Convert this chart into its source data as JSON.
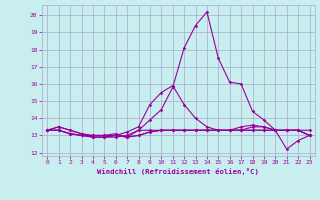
{
  "background_color": "#c8eef0",
  "grid_color": "#aaaacc",
  "line_color": "#990099",
  "xlabel": "Windchill (Refroidissement éolien,°C)",
  "xlabel_color": "#990099",
  "tick_color": "#990099",
  "xlim": [
    -0.5,
    23.5
  ],
  "ylim": [
    11.8,
    20.6
  ],
  "yticks": [
    12,
    13,
    14,
    15,
    16,
    17,
    18,
    19,
    20
  ],
  "xticks": [
    0,
    1,
    2,
    3,
    4,
    5,
    6,
    7,
    8,
    9,
    10,
    11,
    12,
    13,
    14,
    15,
    16,
    17,
    18,
    19,
    20,
    21,
    22,
    23
  ],
  "series": [
    [
      13.3,
      13.5,
      13.3,
      13.1,
      12.9,
      12.9,
      12.9,
      13.0,
      13.3,
      13.9,
      14.5,
      15.8,
      18.1,
      19.4,
      20.2,
      17.5,
      16.1,
      16.0,
      14.4,
      13.9,
      13.3,
      12.2,
      12.7,
      13.0
    ],
    [
      13.3,
      13.5,
      13.3,
      13.1,
      13.0,
      13.0,
      13.0,
      13.2,
      13.5,
      14.8,
      15.5,
      15.9,
      14.8,
      14.0,
      13.5,
      13.3,
      13.3,
      13.5,
      13.6,
      13.5,
      13.3,
      13.3,
      13.3,
      13.3
    ],
    [
      13.3,
      13.3,
      13.1,
      13.0,
      13.0,
      13.0,
      13.1,
      12.9,
      13.3,
      13.3,
      13.3,
      13.3,
      13.3,
      13.3,
      13.3,
      13.3,
      13.3,
      13.3,
      13.3,
      13.3,
      13.3,
      13.3,
      13.3,
      13.0
    ],
    [
      13.3,
      13.3,
      13.1,
      13.0,
      12.9,
      12.9,
      13.0,
      12.9,
      13.0,
      13.2,
      13.3,
      13.3,
      13.3,
      13.3,
      13.3,
      13.3,
      13.3,
      13.3,
      13.3,
      13.3,
      13.3,
      13.3,
      13.3,
      13.0
    ],
    [
      13.3,
      13.3,
      13.1,
      13.0,
      12.9,
      12.9,
      13.0,
      12.9,
      13.0,
      13.2,
      13.3,
      13.3,
      13.3,
      13.3,
      13.3,
      13.3,
      13.3,
      13.3,
      13.5,
      13.5,
      13.3,
      13.3,
      13.3,
      13.0
    ]
  ]
}
